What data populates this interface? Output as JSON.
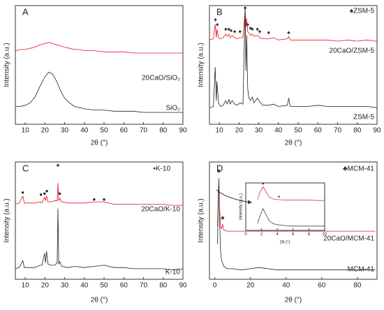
{
  "chart_data": [
    {
      "type": "line",
      "panel_label": "A",
      "x_label": "2θ (°)",
      "y_label": "Intensity (a.u.)",
      "xlim": [
        5,
        90
      ],
      "xticks": [
        10,
        20,
        30,
        40,
        50,
        60,
        70,
        80,
        90
      ],
      "ylim": [
        0,
        100
      ],
      "x": [
        5,
        7.5,
        10,
        12.5,
        15,
        17.5,
        20,
        22,
        24,
        26,
        28,
        30,
        32.5,
        35,
        37.5,
        40,
        45,
        50,
        55,
        60,
        65,
        70,
        75,
        80,
        85,
        90
      ],
      "series": [
        {
          "name": "20CaO/SiO₂",
          "color": "#e8141e",
          "values": [
            62,
            63,
            63,
            64,
            65,
            67,
            68,
            69,
            68,
            67,
            66,
            65,
            64,
            63,
            63,
            62,
            62,
            61,
            61,
            61,
            60,
            60,
            60,
            60,
            60,
            60
          ]
        },
        {
          "name": "SiO₂",
          "color": "#222222",
          "values": [
            15,
            15,
            16,
            18,
            23,
            32,
            40,
            44,
            42,
            36,
            28,
            22,
            18,
            15,
            14,
            13,
            12,
            12,
            11,
            11,
            11,
            10,
            10,
            10,
            10,
            10
          ]
        }
      ]
    },
    {
      "type": "line",
      "panel_label": "B",
      "x_label": "2θ (°)",
      "y_label": "Intensity (a.u.)",
      "annotation": "♠ZSM-5",
      "marker_symbol": "♠",
      "xlim": [
        5,
        90
      ],
      "xticks": [
        10,
        20,
        30,
        40,
        50,
        60,
        70,
        80,
        90
      ],
      "ylim": [
        0,
        100
      ],
      "x": [
        5,
        7,
        7.9,
        8.5,
        8.8,
        9.6,
        10.5,
        12,
        13.2,
        14,
        14.9,
        15.5,
        16.5,
        17.8,
        19,
        20.5,
        22,
        23.1,
        23.5,
        23.9,
        24.4,
        25,
        25.8,
        26.8,
        27.5,
        29.3,
        30.5,
        32,
        35,
        37.5,
        40,
        44.5,
        45.2,
        46,
        50,
        55,
        60,
        65,
        70,
        75,
        80,
        85,
        90
      ],
      "series": [
        {
          "name": "20CaO/ZSM-5",
          "color": "#e8141e",
          "values": [
            71,
            72,
            84,
            73,
            80,
            73,
            72,
            73,
            76,
            74,
            76,
            73,
            75,
            73,
            72,
            73,
            73,
            96,
            82,
            89,
            78,
            77,
            75,
            76,
            74,
            75,
            73,
            72,
            72,
            73,
            71,
            72,
            74,
            71,
            71,
            71,
            71,
            71,
            70,
            71,
            70,
            71,
            70
          ]
        },
        {
          "name": "ZSM-5",
          "color": "#222222",
          "values": [
            14,
            15,
            48,
            20,
            36,
            18,
            15,
            16,
            20,
            17,
            21,
            17,
            20,
            17,
            16,
            18,
            17,
            99,
            45,
            75,
            30,
            22,
            20,
            23,
            18,
            22,
            19,
            16,
            16,
            17,
            15,
            16,
            22,
            15,
            15,
            15,
            16,
            15,
            15,
            15,
            15,
            15,
            14
          ]
        }
      ],
      "markers": {
        "x": [
          8,
          9,
          13.3,
          14.8,
          16,
          17.8,
          20.5,
          23.1,
          24.4,
          25.8,
          26.8,
          29.3,
          30.5,
          35,
          45.2
        ],
        "y": [
          88,
          84,
          80,
          80,
          79,
          78,
          78,
          98,
          84,
          81,
          80,
          80,
          78,
          77,
          77
        ]
      }
    },
    {
      "type": "line",
      "panel_label": "C",
      "x_label": "2θ (°)",
      "y_label": "Intensity (a.u.)",
      "annotation": "•K-10",
      "marker_symbol": "●",
      "xlim": [
        5,
        90
      ],
      "xticks": [
        10,
        20,
        30,
        40,
        50,
        60,
        70,
        80,
        90
      ],
      "ylim": [
        0,
        100
      ],
      "x": [
        5,
        7,
        8.8,
        9.5,
        12,
        15,
        17.5,
        18.5,
        19.8,
        20.3,
        20.8,
        21.5,
        23,
        25,
        26.2,
        26.6,
        27,
        27.5,
        28.5,
        32,
        35,
        40,
        45,
        50,
        55,
        60,
        65,
        70,
        75,
        80,
        85,
        90
      ],
      "series": [
        {
          "name": "20CaO/K-10",
          "color": "#e8141e",
          "values": [
            64,
            65,
            71,
            65,
            65,
            65,
            66,
            65,
            70,
            67,
            71,
            66,
            66,
            67,
            67,
            82,
            67,
            69,
            66,
            65,
            65,
            65,
            66,
            66,
            64,
            64,
            64,
            64,
            64,
            64,
            63,
            63
          ]
        },
        {
          "name": "K-10",
          "color": "#222222",
          "values": [
            9,
            10,
            16,
            10,
            10,
            10,
            12,
            12,
            22,
            14,
            24,
            13,
            12,
            12,
            14,
            60,
            13,
            15,
            11,
            10,
            11,
            10,
            11,
            12,
            10,
            10,
            9,
            9,
            9,
            9,
            8,
            9
          ]
        }
      ],
      "markers": {
        "x": [
          8.8,
          18,
          19.8,
          21,
          26.6,
          27.5,
          45,
          50
        ],
        "y": [
          74,
          72,
          73,
          75,
          97,
          73,
          68,
          68
        ]
      }
    },
    {
      "type": "line",
      "panel_label": "D",
      "x_label": "2θ (°)",
      "y_label": "Intensity (a.u.)",
      "annotation": "♣MCM-41",
      "marker_symbol": "♣",
      "xlim": [
        -3,
        91
      ],
      "xticks": [
        0,
        20,
        40,
        60,
        80
      ],
      "ylim": [
        0,
        100
      ],
      "x": [
        1.5,
        2.0,
        2.3,
        2.7,
        3.2,
        3.8,
        4.4,
        5,
        7,
        10,
        15,
        20,
        25,
        30,
        35,
        40,
        50,
        60,
        70,
        80,
        90
      ],
      "series": [
        {
          "name": "20CaO/MCM-41",
          "color": "#e8141e",
          "values": [
            45,
            75,
            82,
            60,
            45,
            43,
            47,
            42,
            41,
            41,
            41,
            41,
            41,
            41,
            41,
            41,
            41,
            41,
            41,
            41,
            41
          ]
        },
        {
          "name": "MCM-41",
          "color": "#222222",
          "values": [
            30,
            70,
            86,
            50,
            25,
            16,
            14,
            11,
            9,
            9,
            8,
            9,
            10,
            9,
            8,
            8,
            8,
            8,
            8,
            8,
            8
          ]
        }
      ],
      "markers": {
        "x": [
          2.3,
          4.4
        ],
        "y": [
          92,
          52
        ]
      }
    },
    {
      "type": "line",
      "x_label": "2θ (°)",
      "y_label": "Intensity (a.u.)",
      "marker_symbol": "▲",
      "xlim": [
        0,
        10
      ],
      "xticks": [
        0,
        2,
        4,
        6,
        8,
        10
      ],
      "ylim": [
        0,
        100
      ],
      "x": [
        1.5,
        1.8,
        2.2,
        2.6,
        3,
        3.5,
        4,
        5,
        6,
        7,
        8,
        9,
        10
      ],
      "series": [
        {
          "color": "#e8141e",
          "values": [
            65,
            80,
            92,
            80,
            70,
            66,
            65,
            64,
            64,
            64,
            64,
            63,
            63
          ]
        },
        {
          "color": "#222222",
          "values": [
            15,
            30,
            46,
            32,
            20,
            14,
            12,
            10,
            9,
            9,
            9,
            9,
            9
          ]
        }
      ],
      "markers": {
        "x": [
          2.2,
          4.2
        ],
        "y": [
          99,
          72
        ]
      }
    }
  ]
}
